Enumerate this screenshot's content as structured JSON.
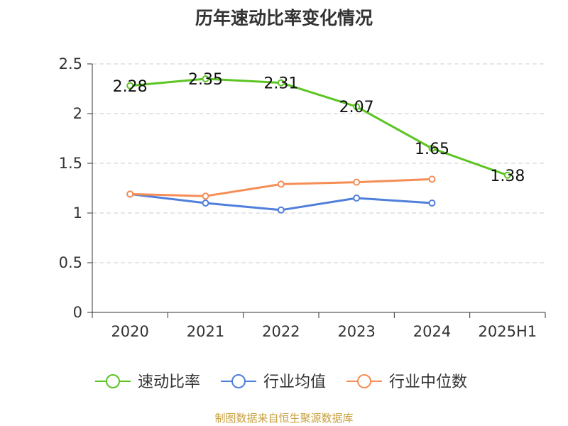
{
  "chart_data": {
    "type": "line",
    "title": "历年速动比率变化情况",
    "categories": [
      "2020",
      "2021",
      "2022",
      "2023",
      "2024",
      "2025H1"
    ],
    "ylim": [
      0,
      2.5
    ],
    "yticks": [
      "0",
      "0.5",
      "1",
      "1.5",
      "2",
      "2.5"
    ],
    "grid": true,
    "legend_position": "bottom",
    "series": [
      {
        "name": "速动比率",
        "color": "#5cc423",
        "values": [
          2.28,
          2.35,
          2.31,
          2.07,
          1.65,
          1.38
        ],
        "labels": [
          "2.28",
          "2.35",
          "2.31",
          "2.07",
          "1.65",
          "1.38"
        ]
      },
      {
        "name": "行业均值",
        "color": "#4f7fdb",
        "values": [
          1.19,
          1.1,
          1.03,
          1.15,
          1.1,
          null
        ]
      },
      {
        "name": "行业中位数",
        "color": "#f58d55",
        "values": [
          1.19,
          1.17,
          1.29,
          1.31,
          1.34,
          null
        ]
      }
    ]
  },
  "footer": {
    "source": "制图数据来自恒生聚源数据库",
    "source_color": "#c8a03c"
  }
}
